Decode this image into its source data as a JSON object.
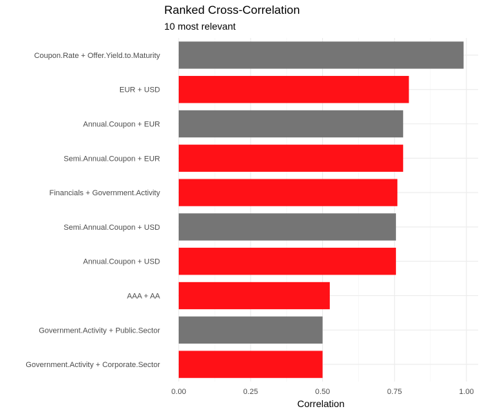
{
  "chart_data": {
    "type": "bar",
    "orientation": "horizontal",
    "title": "Ranked Cross-Correlation",
    "subtitle": "10 most relevant",
    "xlabel": "Correlation",
    "ylabel": "",
    "xlim": [
      0,
      1
    ],
    "x_ticks": [
      "0.00",
      "0.25",
      "0.50",
      "0.75",
      "1.00"
    ],
    "x_tick_values": [
      0,
      0.25,
      0.5,
      0.75,
      1.0
    ],
    "grid": true,
    "legend": "none",
    "categories": [
      "Coupon.Rate + Offer.Yield.to.Maturity",
      "EUR + USD",
      "Annual.Coupon + EUR",
      "Semi.Annual.Coupon + EUR",
      "Financials + Government.Activity",
      "Semi.Annual.Coupon + USD",
      "Annual.Coupon + USD",
      "AAA + AA",
      "Government.Activity + Public.Sector",
      "Government.Activity + Corporate.Sector"
    ],
    "values": [
      0.99,
      0.8,
      0.78,
      0.78,
      0.76,
      0.755,
      0.755,
      0.525,
      0.5,
      0.5
    ],
    "bar_colors": [
      "#757575",
      "#ff1117",
      "#757575",
      "#ff1117",
      "#ff1117",
      "#757575",
      "#ff1117",
      "#ff1117",
      "#757575",
      "#ff1117"
    ]
  }
}
